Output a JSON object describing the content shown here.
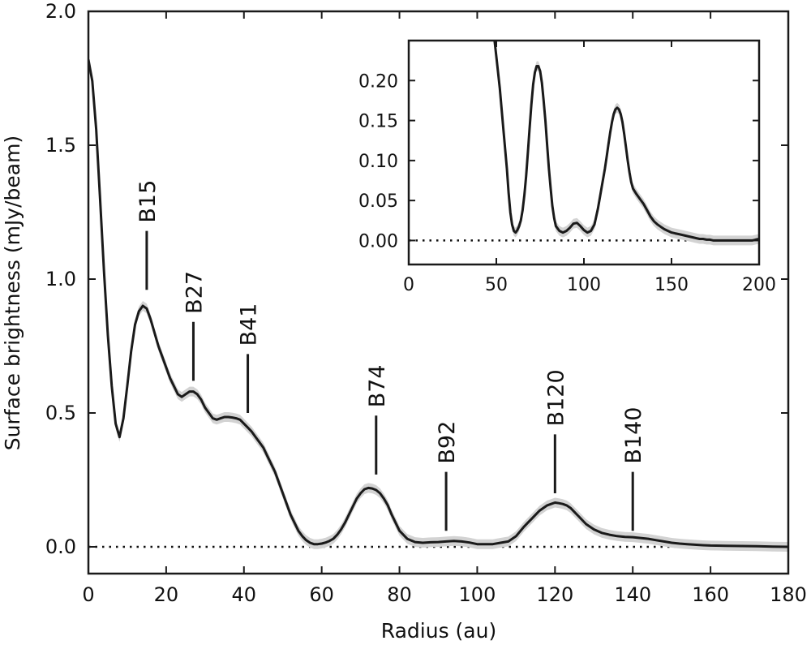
{
  "chart_data": [
    {
      "id": "main",
      "type": "line",
      "xlabel": "Radius (au)",
      "ylabel": "Surface brightness (mJy/beam)",
      "xlim": [
        0,
        180
      ],
      "ylim": [
        -0.1,
        2.0
      ],
      "xticks": [
        "0",
        "20",
        "40",
        "60",
        "80",
        "100",
        "120",
        "140",
        "160",
        "180"
      ],
      "yticks": [
        "0.0",
        "0.5",
        "1.0",
        "1.5",
        "2.0"
      ],
      "colors": {
        "line": "#1a1a1a",
        "band": "#d3d3d3",
        "zero_line": "#111111"
      },
      "series": [
        {
          "x": [
            0,
            1,
            2,
            3,
            4,
            5,
            6,
            7,
            8,
            9,
            10,
            11,
            12,
            13,
            14,
            15,
            16,
            17,
            18,
            19,
            20,
            21,
            22,
            23,
            24,
            25,
            26,
            27,
            28,
            29,
            30,
            31,
            32,
            33,
            34,
            35,
            36,
            37,
            38,
            39,
            40,
            41,
            42,
            43,
            44,
            45,
            46,
            47,
            48,
            49,
            50,
            51,
            52,
            53,
            54,
            55,
            56,
            57,
            58,
            59,
            60,
            61,
            62,
            63,
            64,
            65,
            66,
            67,
            68,
            69,
            70,
            71,
            72,
            73,
            74,
            75,
            76,
            77,
            78,
            79,
            80,
            82,
            84,
            86,
            88,
            90,
            92,
            94,
            96,
            98,
            100,
            102,
            104,
            106,
            108,
            110,
            112,
            113,
            114,
            115,
            116,
            117,
            118,
            119,
            120,
            121,
            122,
            123,
            124,
            125,
            126,
            127,
            128,
            130,
            132,
            134,
            136,
            138,
            140,
            142,
            144,
            146,
            148,
            150,
            152,
            154,
            156,
            158,
            160,
            164,
            168,
            172,
            176,
            180
          ],
          "y": [
            1.82,
            1.74,
            1.56,
            1.3,
            1.03,
            0.79,
            0.6,
            0.46,
            0.41,
            0.48,
            0.6,
            0.73,
            0.83,
            0.88,
            0.9,
            0.89,
            0.85,
            0.8,
            0.75,
            0.71,
            0.67,
            0.63,
            0.6,
            0.57,
            0.56,
            0.57,
            0.58,
            0.58,
            0.57,
            0.55,
            0.52,
            0.5,
            0.48,
            0.475,
            0.48,
            0.485,
            0.485,
            0.483,
            0.48,
            0.475,
            0.46,
            0.445,
            0.43,
            0.41,
            0.39,
            0.37,
            0.34,
            0.31,
            0.28,
            0.24,
            0.2,
            0.16,
            0.12,
            0.09,
            0.06,
            0.04,
            0.025,
            0.015,
            0.01,
            0.01,
            0.012,
            0.016,
            0.022,
            0.03,
            0.045,
            0.065,
            0.09,
            0.12,
            0.15,
            0.18,
            0.2,
            0.215,
            0.22,
            0.218,
            0.212,
            0.2,
            0.18,
            0.155,
            0.12,
            0.09,
            0.06,
            0.03,
            0.018,
            0.015,
            0.017,
            0.018,
            0.02,
            0.022,
            0.02,
            0.016,
            0.01,
            0.01,
            0.01,
            0.015,
            0.02,
            0.04,
            0.075,
            0.09,
            0.105,
            0.12,
            0.135,
            0.145,
            0.155,
            0.16,
            0.165,
            0.163,
            0.16,
            0.155,
            0.145,
            0.13,
            0.115,
            0.1,
            0.085,
            0.065,
            0.052,
            0.045,
            0.04,
            0.037,
            0.036,
            0.033,
            0.03,
            0.025,
            0.02,
            0.015,
            0.012,
            0.01,
            0.008,
            0.006,
            0.005,
            0.004,
            0.003,
            0.002,
            0.001,
            0.0
          ]
        }
      ],
      "annotations": [
        {
          "label": "B15",
          "x": 15,
          "y_start": 0.96,
          "y_end": 1.18
        },
        {
          "label": "B27",
          "x": 27,
          "y_start": 0.62,
          "y_end": 0.84
        },
        {
          "label": "B41",
          "x": 41,
          "y_start": 0.5,
          "y_end": 0.72
        },
        {
          "label": "B74",
          "x": 74,
          "y_start": 0.27,
          "y_end": 0.49
        },
        {
          "label": "B92",
          "x": 92,
          "y_start": 0.06,
          "y_end": 0.28
        },
        {
          "label": "B120",
          "x": 120,
          "y_start": 0.2,
          "y_end": 0.42
        },
        {
          "label": "B140",
          "x": 140,
          "y_start": 0.06,
          "y_end": 0.28
        }
      ]
    },
    {
      "id": "inset",
      "type": "line",
      "xlim": [
        0,
        200
      ],
      "ylim": [
        -0.03,
        0.25
      ],
      "xticks": [
        "0",
        "50",
        "100",
        "150",
        "200"
      ],
      "yticks": [
        "0.00",
        "0.05",
        "0.10",
        "0.15",
        "0.20"
      ],
      "series": [
        {
          "x": [
            49,
            50,
            52,
            54,
            55,
            56,
            57,
            58,
            59,
            60,
            61,
            62,
            63,
            64,
            65,
            66,
            67,
            68,
            69,
            70,
            71,
            72,
            73,
            74,
            75,
            76,
            77,
            78,
            79,
            80,
            81,
            82,
            83,
            84,
            86,
            88,
            90,
            92,
            94,
            96,
            98,
            100,
            102,
            104,
            106,
            108,
            110,
            112,
            113,
            114,
            115,
            116,
            117,
            118,
            119,
            120,
            121,
            122,
            123,
            124,
            125,
            126,
            127,
            128,
            130,
            132,
            134,
            136,
            138,
            140,
            142,
            144,
            146,
            148,
            150,
            152,
            154,
            156,
            158,
            160,
            162,
            164,
            166,
            168,
            170,
            172,
            174,
            176,
            178,
            180,
            182,
            184,
            186,
            188,
            190,
            192,
            194,
            196,
            198,
            200
          ],
          "y": [
            0.25,
            0.23,
            0.19,
            0.14,
            0.115,
            0.09,
            0.06,
            0.035,
            0.02,
            0.012,
            0.01,
            0.013,
            0.018,
            0.025,
            0.038,
            0.057,
            0.08,
            0.11,
            0.14,
            0.17,
            0.195,
            0.21,
            0.218,
            0.218,
            0.212,
            0.197,
            0.175,
            0.15,
            0.12,
            0.09,
            0.065,
            0.043,
            0.028,
            0.018,
            0.012,
            0.01,
            0.012,
            0.016,
            0.021,
            0.022,
            0.018,
            0.013,
            0.01,
            0.012,
            0.02,
            0.04,
            0.065,
            0.09,
            0.105,
            0.12,
            0.135,
            0.148,
            0.158,
            0.164,
            0.166,
            0.164,
            0.158,
            0.148,
            0.133,
            0.117,
            0.1,
            0.085,
            0.073,
            0.065,
            0.058,
            0.052,
            0.046,
            0.038,
            0.03,
            0.024,
            0.02,
            0.017,
            0.014,
            0.012,
            0.01,
            0.009,
            0.008,
            0.007,
            0.006,
            0.005,
            0.004,
            0.003,
            0.002,
            0.002,
            0.001,
            0.001,
            0.0,
            0.0,
            0.0,
            0.0,
            0.0,
            0.0,
            0.0,
            0.0,
            0.0,
            0.0,
            0.0,
            0.0,
            0.001,
            0.002
          ]
        }
      ]
    }
  ]
}
